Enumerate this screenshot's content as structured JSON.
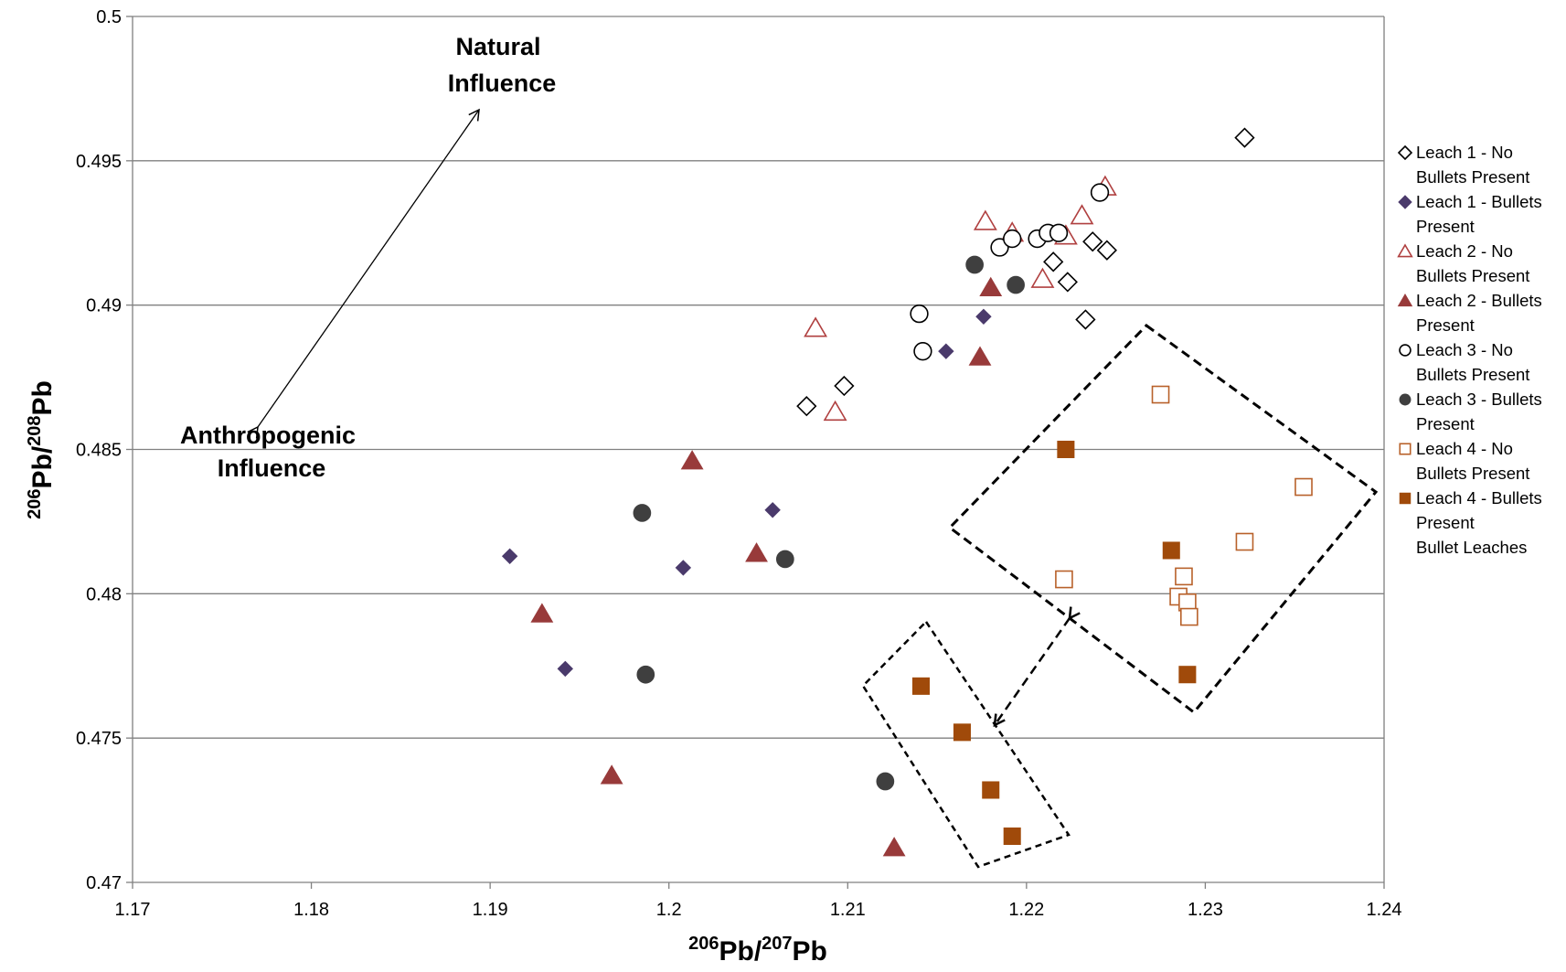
{
  "chart_data": {
    "type": "scatter",
    "title": "",
    "xlabel": {
      "base": "Pb/",
      "sup1": "206",
      "sup2": "207",
      "tail": "Pb"
    },
    "ylabel": {
      "base": "Pb/",
      "sup1": "206",
      "sup2": "208",
      "tail": "Pb"
    },
    "xlim": [
      1.17,
      1.24
    ],
    "ylim": [
      0.47,
      0.5
    ],
    "x_ticks": [
      "1.17",
      "1.18",
      "1.19",
      "1.2",
      "1.21",
      "1.22",
      "1.23",
      "1.24"
    ],
    "y_ticks": [
      "0.47",
      "0.475",
      "0.48",
      "0.485",
      "0.49",
      "0.495",
      "0.5"
    ],
    "grid": "horizontal",
    "legend_position": "right",
    "annotations": {
      "natural_line1": "Natural",
      "natural_line2": "Influence",
      "anthro_line1": "Anthropogenic",
      "anthro_line2": "Influence"
    },
    "legend_note": "Bullet Leaches",
    "series": [
      {
        "name": "Leach 1 - No Bullets Present",
        "legend_lines": [
          "Leach 1 - No",
          "Bullets Present"
        ],
        "marker": "diamond-open",
        "color": "#000000",
        "points": [
          [
            1.2077,
            0.4865
          ],
          [
            1.2098,
            0.4872
          ],
          [
            1.2215,
            0.4915
          ],
          [
            1.2223,
            0.4908
          ],
          [
            1.2237,
            0.4922
          ],
          [
            1.2245,
            0.4919
          ],
          [
            1.2233,
            0.4895
          ],
          [
            1.2322,
            0.4958
          ]
        ]
      },
      {
        "name": "Leach 1 - Bullets Present",
        "legend_lines": [
          "Leach 1 - Bullets",
          "Present"
        ],
        "marker": "diamond-filled",
        "color": "#4a3a6b",
        "points": [
          [
            1.1911,
            0.4813
          ],
          [
            1.1942,
            0.4774
          ],
          [
            1.2008,
            0.4809
          ],
          [
            1.2058,
            0.4829
          ],
          [
            1.2155,
            0.4884
          ],
          [
            1.2176,
            0.4896
          ]
        ]
      },
      {
        "name": "Leach 2 - No Bullets Present",
        "legend_lines": [
          "Leach 2 - No",
          "Bullets Present"
        ],
        "marker": "triangle-open",
        "color": "#b04040",
        "points": [
          [
            1.2082,
            0.4892
          ],
          [
            1.2093,
            0.4863
          ],
          [
            1.2177,
            0.4929
          ],
          [
            1.2192,
            0.4925
          ],
          [
            1.2209,
            0.4909
          ],
          [
            1.2222,
            0.4924
          ],
          [
            1.2231,
            0.4931
          ],
          [
            1.2244,
            0.4941
          ]
        ]
      },
      {
        "name": "Leach 2 - Bullets Present",
        "legend_lines": [
          "Leach 2 - Bullets",
          "Present"
        ],
        "marker": "triangle-filled",
        "color": "#983a3a",
        "points": [
          [
            1.1929,
            0.4793
          ],
          [
            1.1968,
            0.4737
          ],
          [
            1.2013,
            0.4846
          ],
          [
            1.2049,
            0.4814
          ],
          [
            1.2126,
            0.4712
          ],
          [
            1.2174,
            0.4882
          ],
          [
            1.218,
            0.4906
          ]
        ]
      },
      {
        "name": "Leach 3 - No Bullets Present",
        "legend_lines": [
          "Leach 3 - No",
          "Bullets Present"
        ],
        "marker": "circle-open",
        "color": "#000000",
        "points": [
          [
            1.214,
            0.4897
          ],
          [
            1.2142,
            0.4884
          ],
          [
            1.2185,
            0.492
          ],
          [
            1.2192,
            0.4923
          ],
          [
            1.2206,
            0.4923
          ],
          [
            1.2212,
            0.4925
          ],
          [
            1.2218,
            0.4925
          ],
          [
            1.2241,
            0.4939
          ]
        ]
      },
      {
        "name": "Leach 3 - Bullets Present",
        "legend_lines": [
          "Leach 3 - Bullets",
          "Present"
        ],
        "marker": "circle-filled",
        "color": "#3f3f3f",
        "points": [
          [
            1.1985,
            0.4828
          ],
          [
            1.1987,
            0.4772
          ],
          [
            1.2065,
            0.4812
          ],
          [
            1.2121,
            0.4735
          ],
          [
            1.2171,
            0.4914
          ],
          [
            1.2194,
            0.4907
          ]
        ]
      },
      {
        "name": "Leach 4 - No Bullets Present",
        "legend_lines": [
          "Leach 4 - No",
          "Bullets Present"
        ],
        "marker": "square-open",
        "color": "#b8612a",
        "points": [
          [
            1.2221,
            0.4805
          ],
          [
            1.2275,
            0.4869
          ],
          [
            1.2285,
            0.4799
          ],
          [
            1.2288,
            0.4806
          ],
          [
            1.229,
            0.4797
          ],
          [
            1.2291,
            0.4792
          ],
          [
            1.2322,
            0.4818
          ],
          [
            1.2355,
            0.4837
          ]
        ]
      },
      {
        "name": "Leach 4 - Bullets Present",
        "legend_lines": [
          "Leach 4 - Bullets",
          "Present"
        ],
        "marker": "square-filled",
        "color": "#a04a0a",
        "points": [
          [
            1.2141,
            0.4768
          ],
          [
            1.2164,
            0.4752
          ],
          [
            1.218,
            0.4732
          ],
          [
            1.2192,
            0.4716
          ],
          [
            1.2222,
            0.485
          ],
          [
            1.2281,
            0.4815
          ],
          [
            1.229,
            0.4772
          ]
        ]
      }
    ]
  }
}
